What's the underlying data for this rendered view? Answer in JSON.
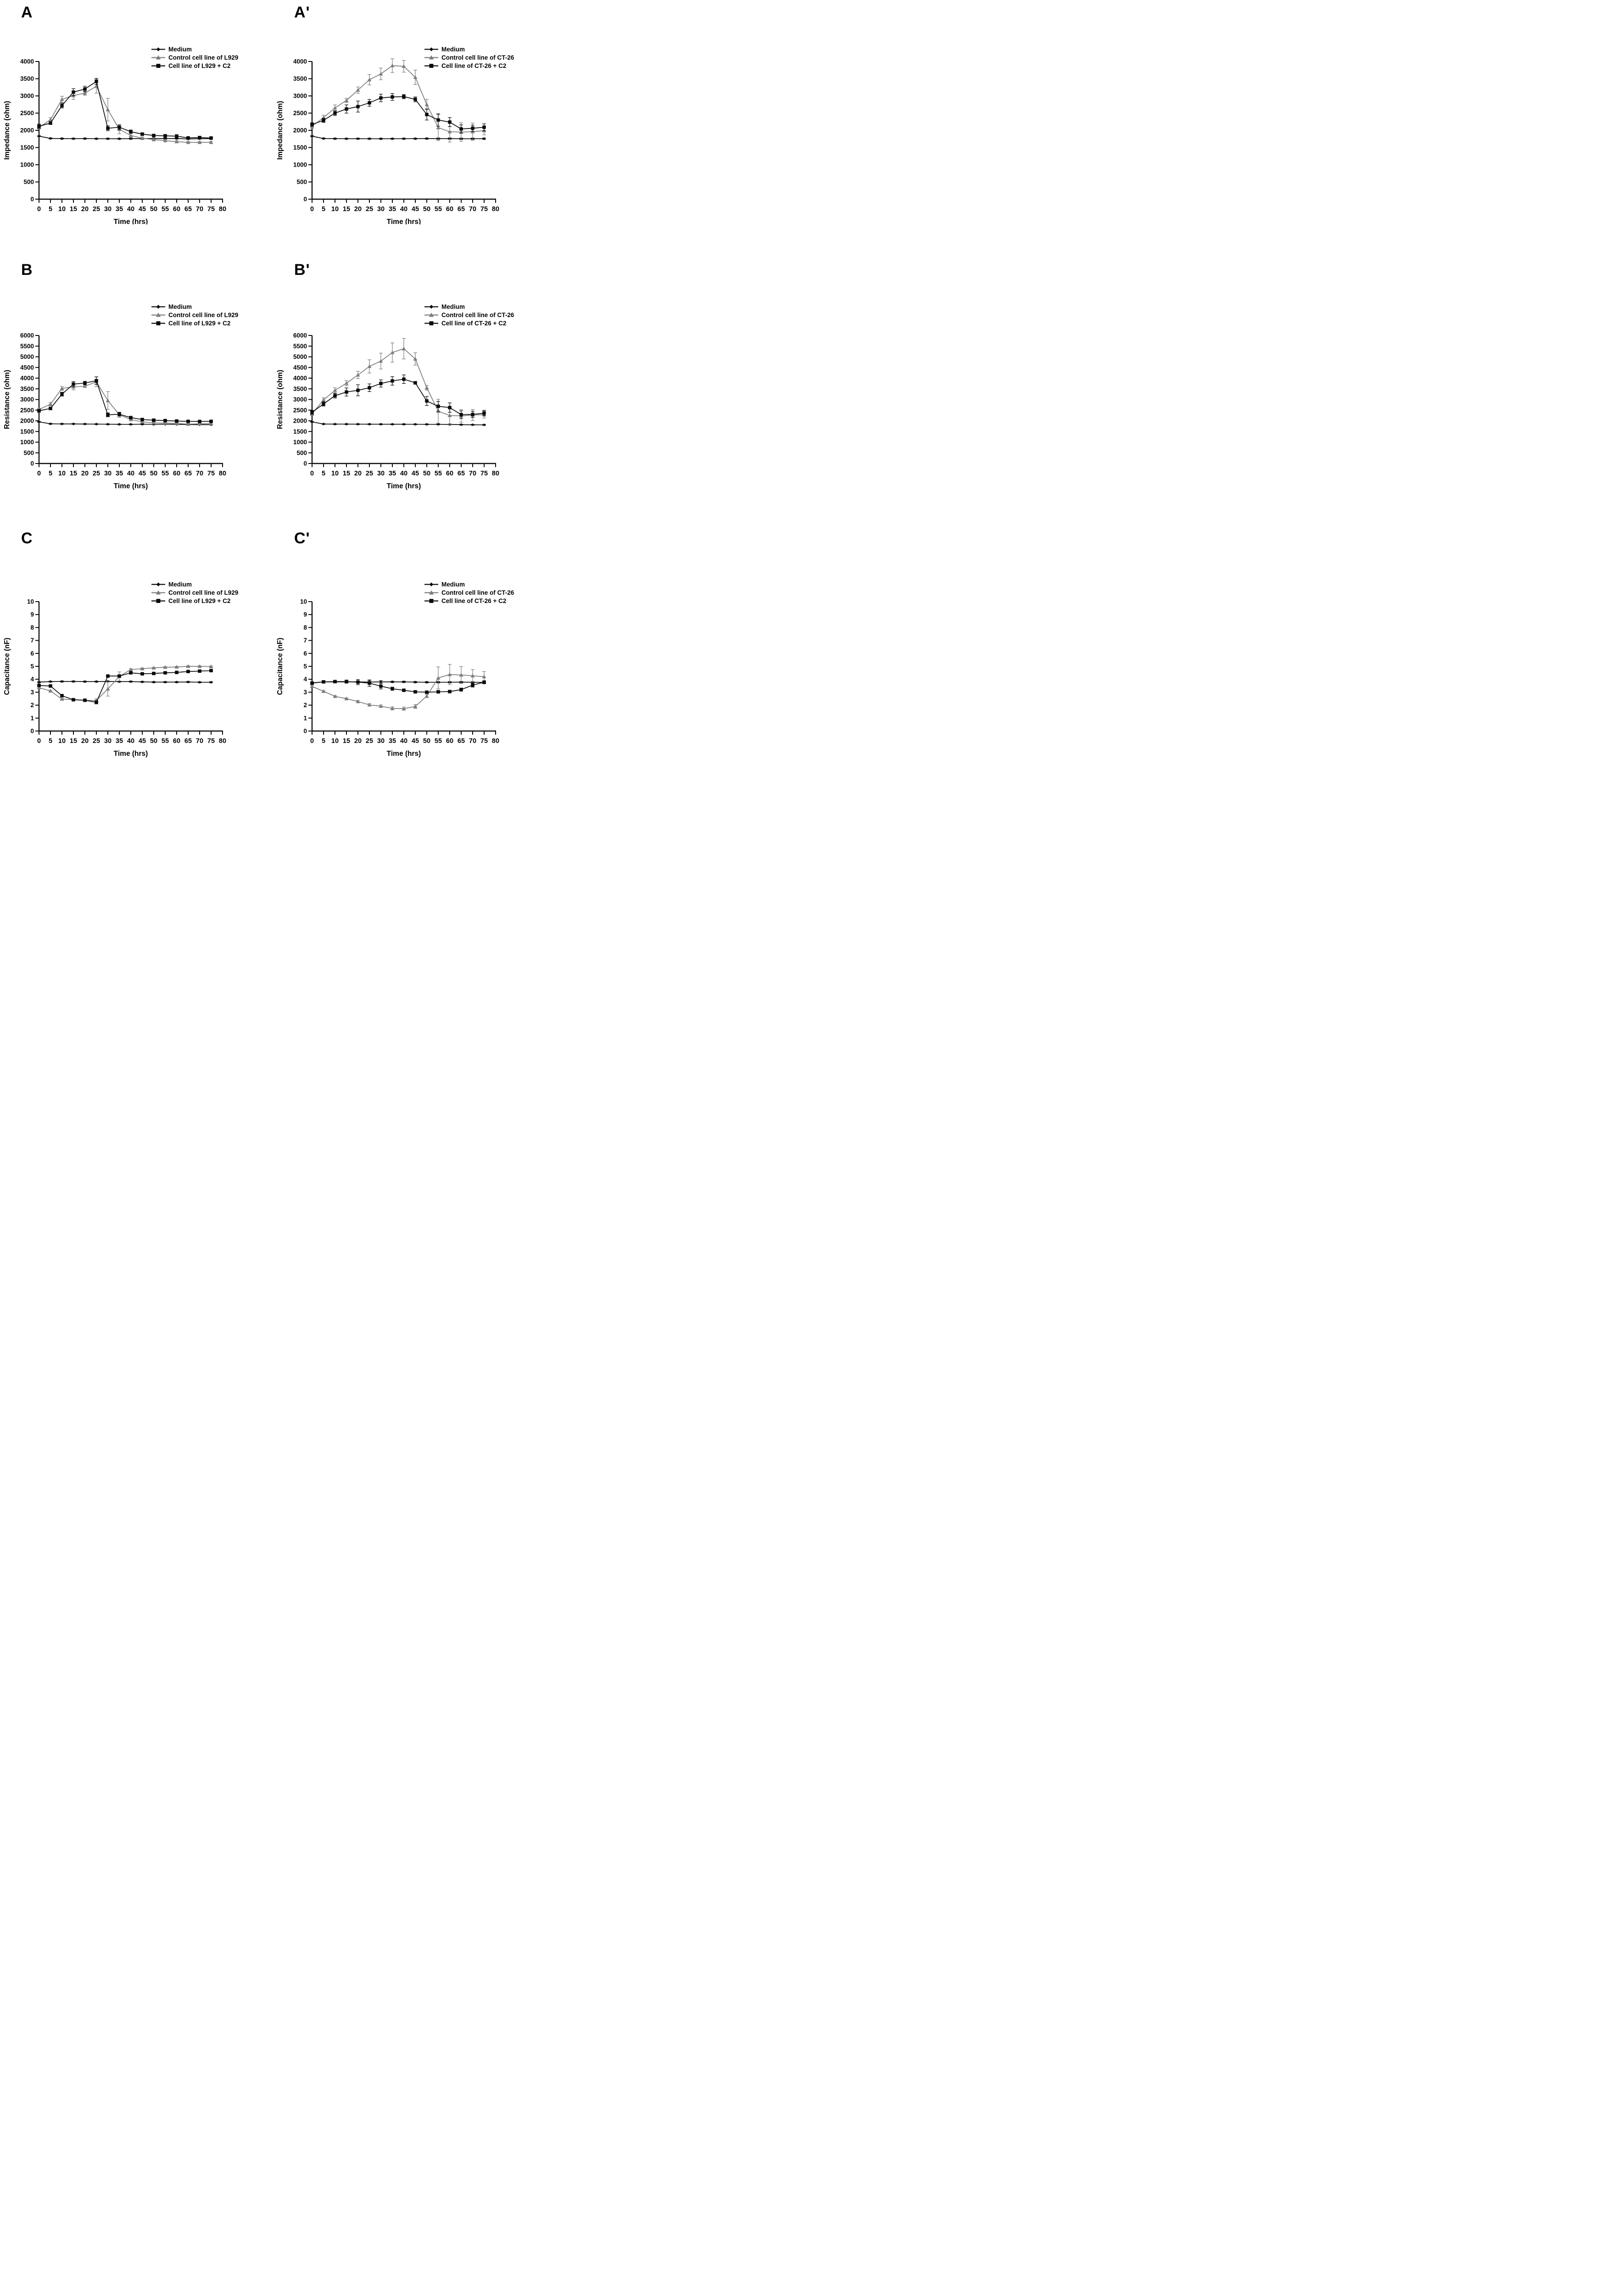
{
  "figure_title": "",
  "x_axis_label": "Time (hrs)",
  "colors": {
    "black_series": "#0a0a0a",
    "gray_series": "#7d7d7d",
    "axis": "#0a0a0a",
    "background": "#ffffff"
  },
  "chart_data": [
    {
      "type": "line",
      "label": "A",
      "ylabel": "Impedance (ohm)",
      "xlabel": "Time (hrs)",
      "ylim": [
        0,
        4000
      ],
      "ytick": 500,
      "xlim": [
        0,
        80
      ],
      "xtick": 5,
      "grid": false,
      "legend_position": "top-right",
      "x": [
        0,
        5,
        10,
        15,
        20,
        25,
        30,
        35,
        40,
        45,
        50,
        55,
        60,
        65,
        70,
        75
      ],
      "series": [
        {
          "name": "Medium",
          "marker": "diamond",
          "color": "#0a0a0a",
          "values": [
            1830,
            1765,
            1760,
            1758,
            1760,
            1756,
            1756,
            1755,
            1758,
            1760,
            1762,
            1762,
            1762,
            1750,
            1757,
            1758
          ],
          "errors": [
            15,
            15,
            15,
            15,
            15,
            15,
            15,
            15,
            15,
            15,
            15,
            15,
            15,
            15,
            15,
            15
          ]
        },
        {
          "name": "Control cell line of L929",
          "marker": "triangle",
          "color": "#7d7d7d",
          "values": [
            2080,
            2310,
            2900,
            3010,
            3080,
            3280,
            2600,
            2030,
            1850,
            1770,
            1730,
            1700,
            1670,
            1650,
            1650,
            1650
          ],
          "errors": [
            40,
            60,
            90,
            110,
            60,
            200,
            330,
            130,
            60,
            40,
            30,
            30,
            30,
            25,
            25,
            30
          ]
        },
        {
          "name": "Cell line of L929 + C2",
          "marker": "square",
          "color": "#0a0a0a",
          "values": [
            2120,
            2210,
            2720,
            3110,
            3200,
            3420,
            2060,
            2090,
            1960,
            1890,
            1850,
            1840,
            1830,
            1780,
            1790,
            1775
          ],
          "errors": [
            60,
            40,
            70,
            100,
            80,
            90,
            70,
            70,
            50,
            40,
            35,
            40,
            45,
            35,
            35,
            40
          ]
        }
      ]
    },
    {
      "type": "line",
      "label": "A'",
      "ylabel": "Impedance (ohm)",
      "xlabel": "Time (hrs)",
      "ylim": [
        0,
        4000
      ],
      "ytick": 500,
      "xlim": [
        0,
        80
      ],
      "xtick": 5,
      "grid": false,
      "legend_position": "top-right",
      "x": [
        0,
        5,
        10,
        15,
        20,
        25,
        30,
        35,
        40,
        45,
        50,
        55,
        60,
        65,
        70,
        75
      ],
      "series": [
        {
          "name": "Medium",
          "marker": "diamond",
          "color": "#0a0a0a",
          "values": [
            1830,
            1762,
            1758,
            1756,
            1757,
            1756,
            1755,
            1756,
            1757,
            1758,
            1760,
            1758,
            1760,
            1755,
            1756,
            1757
          ],
          "errors": [
            15,
            15,
            15,
            15,
            15,
            15,
            15,
            15,
            15,
            15,
            15,
            20,
            20,
            20,
            20,
            20
          ]
        },
        {
          "name": "Control cell line of CT-26",
          "marker": "triangle",
          "color": "#7d7d7d",
          "values": [
            2120,
            2370,
            2650,
            2870,
            3170,
            3470,
            3640,
            3880,
            3860,
            3540,
            2750,
            2080,
            1960,
            1950,
            1960,
            1990
          ],
          "errors": [
            60,
            70,
            90,
            60,
            90,
            150,
            170,
            200,
            170,
            210,
            150,
            380,
            300,
            270,
            250,
            120
          ]
        },
        {
          "name": "Cell line of CT-26 + C2",
          "marker": "square",
          "color": "#0a0a0a",
          "values": [
            2170,
            2290,
            2500,
            2620,
            2690,
            2800,
            2940,
            2970,
            2980,
            2900,
            2460,
            2300,
            2240,
            2040,
            2060,
            2090
          ],
          "errors": [
            50,
            60,
            70,
            120,
            160,
            100,
            110,
            100,
            60,
            70,
            160,
            180,
            130,
            120,
            90,
            100
          ]
        }
      ]
    },
    {
      "type": "line",
      "label": "B",
      "ylabel": "Resistance (ohm)",
      "xlabel": "Time (hrs)",
      "ylim": [
        0,
        6000
      ],
      "ytick": 500,
      "xlim": [
        0,
        80
      ],
      "xtick": 5,
      "grid": false,
      "legend_position": "top-right",
      "x": [
        0,
        5,
        10,
        15,
        20,
        25,
        30,
        35,
        40,
        45,
        50,
        55,
        60,
        65,
        70,
        75
      ],
      "series": [
        {
          "name": "Medium",
          "marker": "diamond",
          "color": "#0a0a0a",
          "values": [
            1950,
            1860,
            1855,
            1855,
            1850,
            1845,
            1840,
            1835,
            1835,
            1840,
            1835,
            1840,
            1835,
            1825,
            1820,
            1820
          ],
          "errors": [
            20,
            20,
            20,
            20,
            20,
            20,
            20,
            20,
            20,
            20,
            20,
            20,
            20,
            20,
            20,
            20
          ]
        },
        {
          "name": "Control cell line of L929",
          "marker": "triangle",
          "color": "#7d7d7d",
          "values": [
            2530,
            2780,
            3520,
            3590,
            3620,
            3830,
            2950,
            2280,
            2060,
            1950,
            1905,
            1890,
            1880,
            1845,
            1860,
            1870
          ],
          "errors": [
            60,
            80,
            90,
            140,
            60,
            230,
            420,
            120,
            60,
            50,
            40,
            40,
            40,
            30,
            30,
            40
          ]
        },
        {
          "name": "Cell line of L929 + C2",
          "marker": "square",
          "color": "#0a0a0a",
          "values": [
            2470,
            2580,
            3250,
            3720,
            3770,
            3880,
            2280,
            2310,
            2150,
            2060,
            2030,
            2010,
            1990,
            1975,
            1970,
            1975
          ],
          "errors": [
            70,
            60,
            90,
            120,
            80,
            180,
            90,
            90,
            60,
            50,
            40,
            40,
            40,
            35,
            35,
            40
          ]
        }
      ]
    },
    {
      "type": "line",
      "label": "B'",
      "ylabel": "Resistance (ohm)",
      "xlabel": "Time (hrs)",
      "ylim": [
        0,
        6000
      ],
      "ytick": 500,
      "xlim": [
        0,
        80
      ],
      "xtick": 5,
      "grid": false,
      "legend_position": "top-right",
      "x": [
        0,
        5,
        10,
        15,
        20,
        25,
        30,
        35,
        40,
        45,
        50,
        55,
        60,
        65,
        70,
        75
      ],
      "series": [
        {
          "name": "Medium",
          "marker": "diamond",
          "color": "#0a0a0a",
          "values": [
            1950,
            1850,
            1845,
            1845,
            1843,
            1842,
            1840,
            1838,
            1838,
            1837,
            1835,
            1835,
            1830,
            1820,
            1815,
            1810
          ],
          "errors": [
            20,
            20,
            20,
            20,
            20,
            20,
            20,
            20,
            20,
            20,
            20,
            20,
            20,
            20,
            20,
            20
          ]
        },
        {
          "name": "Control cell line of CT-26",
          "marker": "triangle",
          "color": "#7d7d7d",
          "values": [
            2330,
            2980,
            3430,
            3760,
            4150,
            4550,
            4800,
            5200,
            5380,
            4900,
            3550,
            2450,
            2250,
            2230,
            2270,
            2290
          ],
          "errors": [
            80,
            100,
            120,
            120,
            170,
            310,
            370,
            450,
            480,
            290,
            110,
            560,
            420,
            300,
            260,
            160
          ]
        },
        {
          "name": "Cell line of CT-26 + C2",
          "marker": "square",
          "color": "#0a0a0a",
          "values": [
            2400,
            2790,
            3180,
            3350,
            3430,
            3550,
            3750,
            3870,
            3950,
            3780,
            2930,
            2680,
            2620,
            2290,
            2300,
            2360
          ],
          "errors": [
            90,
            100,
            110,
            190,
            260,
            180,
            170,
            200,
            200,
            60,
            210,
            230,
            220,
            180,
            150,
            130
          ]
        }
      ]
    },
    {
      "type": "line",
      "label": "C",
      "ylabel": "Capacitance (nF)",
      "xlabel": "Time (hrs)",
      "ylim": [
        0,
        10
      ],
      "ytick": 1,
      "xlim": [
        0,
        80
      ],
      "xtick": 5,
      "grid": false,
      "legend_position": "top-right",
      "x": [
        0,
        5,
        10,
        15,
        20,
        25,
        30,
        35,
        40,
        45,
        50,
        55,
        60,
        65,
        70,
        75
      ],
      "series": [
        {
          "name": "Medium",
          "marker": "diamond",
          "color": "#0a0a0a",
          "values": [
            3.78,
            3.82,
            3.83,
            3.83,
            3.82,
            3.82,
            3.83,
            3.82,
            3.82,
            3.8,
            3.78,
            3.78,
            3.78,
            3.79,
            3.77,
            3.77
          ],
          "errors": [
            0.04,
            0.04,
            0.04,
            0.04,
            0.04,
            0.04,
            0.04,
            0.04,
            0.04,
            0.04,
            0.04,
            0.04,
            0.04,
            0.04,
            0.04,
            0.04
          ]
        },
        {
          "name": "Control cell line of L929",
          "marker": "triangle",
          "color": "#7d7d7d",
          "values": [
            3.35,
            3.1,
            2.47,
            2.42,
            2.37,
            2.37,
            3.25,
            4.22,
            4.75,
            4.82,
            4.88,
            4.93,
            4.95,
            5.0,
            5.0,
            4.98
          ],
          "errors": [
            0.08,
            0.06,
            0.06,
            0.05,
            0.05,
            0.12,
            0.55,
            0.35,
            0.06,
            0.05,
            0.04,
            0.04,
            0.04,
            0.05,
            0.04,
            0.05
          ]
        },
        {
          "name": "Cell line of L929 + C2",
          "marker": "square",
          "color": "#0a0a0a",
          "values": [
            3.52,
            3.48,
            2.73,
            2.42,
            2.38,
            2.22,
            4.25,
            4.25,
            4.5,
            4.42,
            4.45,
            4.5,
            4.53,
            4.6,
            4.63,
            4.67
          ],
          "errors": [
            0.08,
            0.07,
            0.06,
            0.05,
            0.06,
            0.12,
            0.05,
            0.05,
            0.06,
            0.05,
            0.05,
            0.05,
            0.05,
            0.05,
            0.05,
            0.06
          ]
        }
      ]
    },
    {
      "type": "line",
      "label": "C'",
      "ylabel": "Capacitance (nF)",
      "xlabel": "Time (hrs)",
      "ylim": [
        0,
        10
      ],
      "ytick": 1,
      "xlim": [
        0,
        80
      ],
      "xtick": 5,
      "grid": false,
      "legend_position": "top-right",
      "x": [
        0,
        5,
        10,
        15,
        20,
        25,
        30,
        35,
        40,
        45,
        50,
        55,
        60,
        65,
        70,
        75
      ],
      "series": [
        {
          "name": "Medium",
          "marker": "diamond",
          "color": "#0a0a0a",
          "values": [
            3.72,
            3.8,
            3.8,
            3.8,
            3.8,
            3.78,
            3.8,
            3.8,
            3.8,
            3.78,
            3.77,
            3.77,
            3.77,
            3.78,
            3.77,
            3.76
          ],
          "errors": [
            0.05,
            0.05,
            0.05,
            0.05,
            0.05,
            0.1,
            0.1,
            0.05,
            0.05,
            0.05,
            0.05,
            0.05,
            0.05,
            0.05,
            0.05,
            0.05
          ]
        },
        {
          "name": "Control cell line of CT-26",
          "marker": "triangle",
          "color": "#7d7d7d",
          "values": [
            3.45,
            3.07,
            2.68,
            2.5,
            2.28,
            2.02,
            1.92,
            1.75,
            1.73,
            1.9,
            2.7,
            4.1,
            4.37,
            4.33,
            4.27,
            4.2
          ],
          "errors": [
            0.08,
            0.06,
            0.06,
            0.06,
            0.08,
            0.1,
            0.1,
            0.12,
            0.12,
            0.15,
            0.12,
            0.85,
            0.78,
            0.65,
            0.48,
            0.4
          ]
        },
        {
          "name": "Cell line of CT-26 + C2",
          "marker": "square",
          "color": "#0a0a0a",
          "values": [
            3.7,
            3.8,
            3.82,
            3.82,
            3.78,
            3.7,
            3.47,
            3.27,
            3.15,
            3.03,
            3.0,
            3.03,
            3.05,
            3.2,
            3.55,
            3.77
          ],
          "errors": [
            0.1,
            0.08,
            0.1,
            0.12,
            0.2,
            0.25,
            0.22,
            0.12,
            0.08,
            0.06,
            0.08,
            0.1,
            0.1,
            0.12,
            0.15,
            0.12
          ]
        }
      ]
    }
  ]
}
